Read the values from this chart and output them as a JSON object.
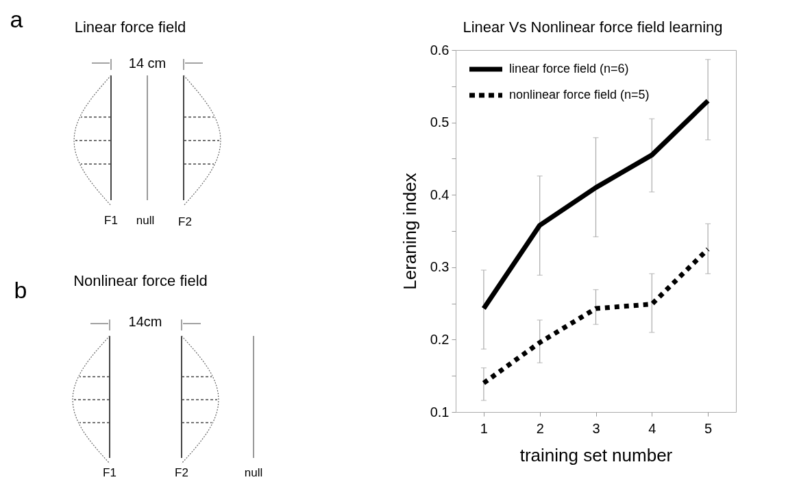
{
  "chart_data": [
    {
      "type": "other",
      "title": "Linear force field",
      "annotations": [
        "a",
        "14 cm",
        "F1",
        "null",
        "F2"
      ]
    },
    {
      "type": "other",
      "title": "Nonlinear force field",
      "annotations": [
        "b",
        "14cm",
        "F1",
        "F2",
        "null"
      ]
    },
    {
      "type": "line",
      "title": "Linear Vs Nonlinear force field learning",
      "xlabel": "training set number",
      "ylabel": "Leraning index",
      "x": [
        1,
        2,
        3,
        4,
        5
      ],
      "series": [
        {
          "name": "linear force field (n=6)",
          "color": "#000000",
          "line_style": "solid",
          "values": [
            0.243,
            0.358,
            0.41,
            0.455,
            0.53
          ],
          "errors": [
            [
              0.187,
              0.296
            ],
            [
              0.289,
              0.426
            ],
            [
              0.342,
              0.479
            ],
            [
              0.404,
              0.505
            ],
            [
              0.476,
              0.587
            ]
          ]
        },
        {
          "name": "nonlinear force field (n=5)",
          "color": "#000000",
          "line_style": "dashed",
          "values": [
            0.14,
            0.196,
            0.243,
            0.249,
            0.325
          ],
          "errors": [
            [
              0.116,
              0.161
            ],
            [
              0.168,
              0.227
            ],
            [
              0.221,
              0.269
            ],
            [
              0.21,
              0.291
            ],
            [
              0.291,
              0.36
            ]
          ]
        }
      ],
      "xlim": [
        0.5,
        5.5
      ],
      "xticks": [
        1,
        2,
        3,
        4,
        5
      ],
      "ylim": [
        0.1,
        0.6
      ],
      "yticks": [
        0.1,
        {
          "value": 0.15,
          "label": null
        },
        0.2,
        {
          "value": 0.25,
          "label": null
        },
        0.3,
        {
          "value": 0.35,
          "label": null
        },
        0.4,
        {
          "value": 0.45,
          "label": null
        },
        0.5,
        {
          "value": 0.55,
          "label": null
        },
        0.6
      ],
      "grid": false,
      "legend": "top left",
      "marker": "none"
    }
  ]
}
